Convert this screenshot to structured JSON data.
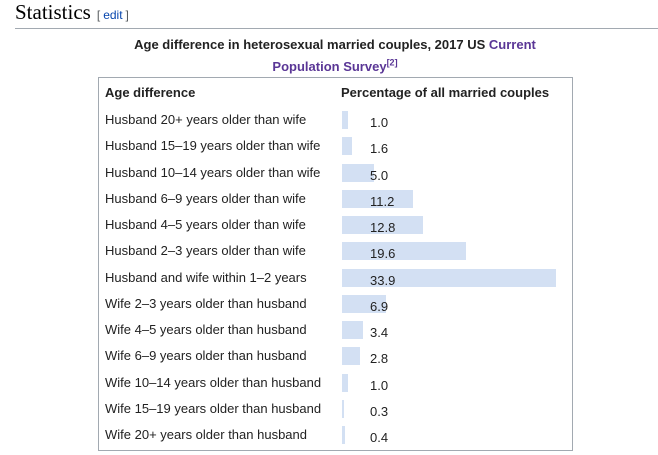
{
  "heading": {
    "title": "Statistics",
    "edit_open": "[",
    "edit": "edit",
    "edit_close": "]"
  },
  "caption": {
    "text": "Age difference in heterosexual married couples, 2017 US ",
    "link": "Current Population Survey",
    "ref": "[2]"
  },
  "table": {
    "headers": [
      "Age difference",
      "Percentage of all married couples"
    ],
    "rows": [
      {
        "label": "Husband 20+ years older than wife",
        "value": 1.0,
        "value_label": "1.0"
      },
      {
        "label": "Husband 15–19 years older than wife",
        "value": 1.6,
        "value_label": "1.6"
      },
      {
        "label": "Husband 10–14 years older than wife",
        "value": 5.0,
        "value_label": "5.0"
      },
      {
        "label": "Husband 6–9 years older than wife",
        "value": 11.2,
        "value_label": "11.2"
      },
      {
        "label": "Husband 4–5 years older than wife",
        "value": 12.8,
        "value_label": "12.8"
      },
      {
        "label": "Husband 2–3 years older than wife",
        "value": 19.6,
        "value_label": "19.6"
      },
      {
        "label": "Husband and wife within 1–2 years",
        "value": 33.9,
        "value_label": "33.9"
      },
      {
        "label": "Wife 2–3 years older than husband",
        "value": 6.9,
        "value_label": "6.9"
      },
      {
        "label": "Wife 4–5 years older than husband",
        "value": 3.4,
        "value_label": "3.4"
      },
      {
        "label": "Wife 6–9 years older than husband",
        "value": 2.8,
        "value_label": "2.8"
      },
      {
        "label": "Wife 10–14 years older than husband",
        "value": 1.0,
        "value_label": "1.0"
      },
      {
        "label": "Wife 15–19 years older than husband",
        "value": 0.3,
        "value_label": "0.3"
      },
      {
        "label": "Wife 20+ years older than husband",
        "value": 0.4,
        "value_label": "0.4"
      }
    ]
  }
}
